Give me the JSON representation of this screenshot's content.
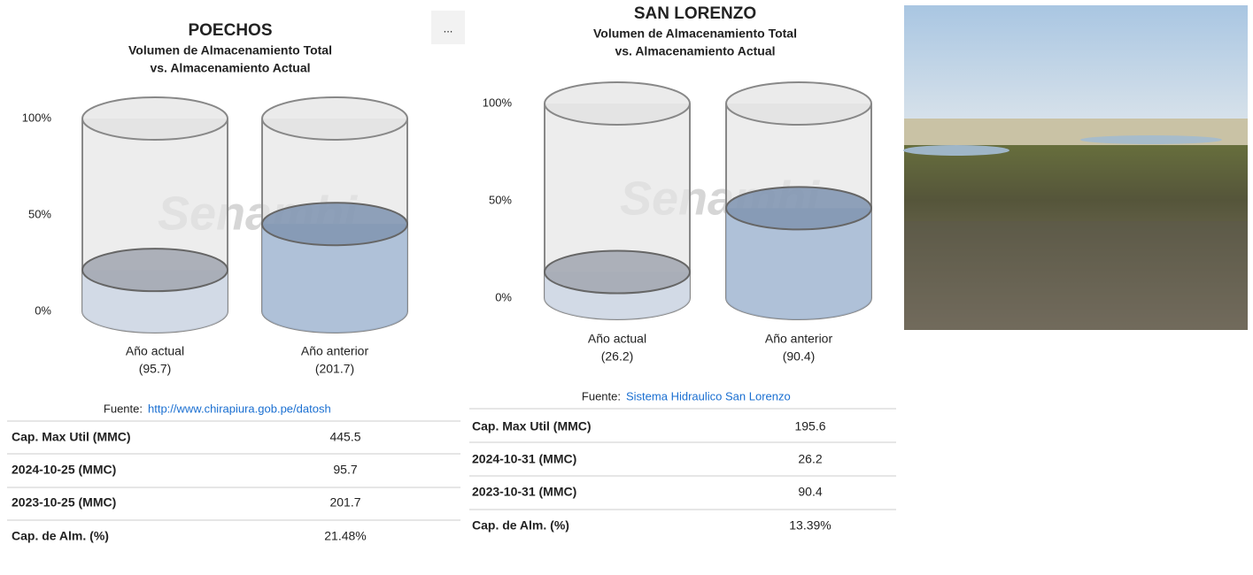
{
  "chart_data": [
    {
      "type": "cylinder",
      "title": "POECHOS",
      "subtitle": [
        "Volumen de Almacenamiento Total",
        "vs. Almacenamiento Actual"
      ],
      "watermark": "Senamhi",
      "categories": [
        "Año actual",
        "Año anterior"
      ],
      "category_notes": [
        "(95.7)",
        "(201.7)"
      ],
      "values": [
        21.48,
        45.3
      ],
      "colors": [
        "#cdd6e4",
        "#a3b8d3"
      ],
      "ylim": [
        0,
        100
      ],
      "yticks": [
        {
          "value": 0,
          "label": "0%"
        },
        {
          "value": 50,
          "label": "50%"
        },
        {
          "value": 100,
          "label": "100%"
        }
      ],
      "source_label": "Fuente:",
      "source_text": "http://www.chirapiura.gob.pe/datosh",
      "table": {
        "rows": [
          [
            "Cap. Max Util (MMC)",
            "445.5"
          ],
          [
            "2024-10-25 (MMC)",
            "95.7"
          ],
          [
            "2023-10-25 (MMC)",
            "201.7"
          ],
          [
            "Cap. de Alm. (%)",
            "21.48%"
          ]
        ]
      }
    },
    {
      "type": "cylinder",
      "title": "SAN LORENZO",
      "subtitle": [
        "Volumen de Almacenamiento Total",
        "vs. Almacenamiento Actual"
      ],
      "watermark": "Senamhi",
      "categories": [
        "Año actual",
        "Año anterior"
      ],
      "category_notes": [
        "(26.2)",
        "(90.4)"
      ],
      "values": [
        13.39,
        46.2
      ],
      "colors": [
        "#cdd6e4",
        "#a3b8d3"
      ],
      "ylim": [
        0,
        100
      ],
      "yticks": [
        {
          "value": 0,
          "label": "0%"
        },
        {
          "value": 50,
          "label": "50%"
        },
        {
          "value": 100,
          "label": "100%"
        }
      ],
      "source_label": "Fuente:",
      "source_text": "Sistema Hidraulico San Lorenzo",
      "table": {
        "rows": [
          [
            "Cap. Max Util (MMC)",
            "195.6"
          ],
          [
            "2024-10-31 (MMC)",
            "26.2"
          ],
          [
            "2023-10-31 (MMC)",
            "90.4"
          ],
          [
            "Cap. de Alm. (%)",
            "13.39%"
          ]
        ]
      }
    }
  ],
  "menu": "..."
}
